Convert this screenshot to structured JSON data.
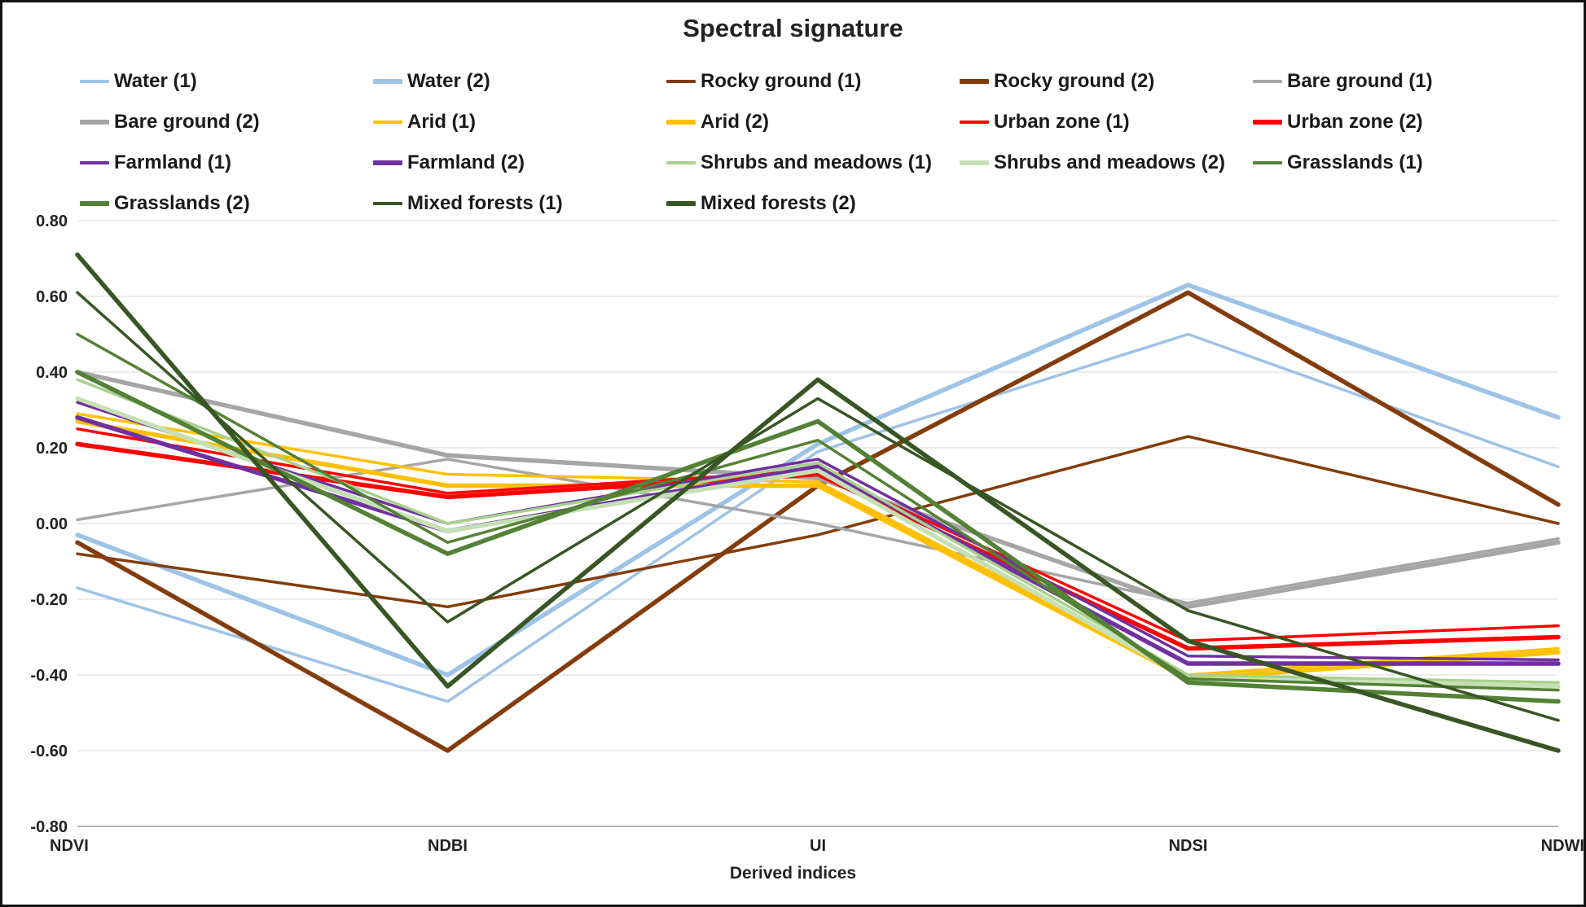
{
  "chart_data": {
    "type": "line",
    "title": "Spectral signature",
    "xlabel": "Derived indices",
    "ylabel": "",
    "categories": [
      "NDVI",
      "NDBI",
      "UI",
      "NDSI",
      "NDWI"
    ],
    "ylim": [
      -0.8,
      0.8
    ],
    "ystep": 0.2,
    "grid": "horizontal",
    "legend_position": "top",
    "gridline_color": "#d9d9d9",
    "axis_color": "#9a9a9a",
    "series": [
      {
        "name": "Water (1)",
        "color": "#9DC3E6",
        "width": 3.5,
        "values": [
          -0.17,
          -0.47,
          0.19,
          0.5,
          0.15
        ]
      },
      {
        "name": "Water (2)",
        "color": "#9DC3E6",
        "width": 5.5,
        "values": [
          -0.03,
          -0.4,
          0.21,
          0.63,
          0.28
        ]
      },
      {
        "name": "Rocky ground (1)",
        "color": "#843C0C",
        "width": 3.5,
        "values": [
          -0.08,
          -0.22,
          -0.03,
          0.23,
          0.0
        ]
      },
      {
        "name": "Rocky ground (2)",
        "color": "#843C0C",
        "width": 5.5,
        "values": [
          -0.05,
          -0.6,
          0.1,
          0.61,
          0.05
        ]
      },
      {
        "name": "Bare ground (1)",
        "color": "#A6A6A6",
        "width": 3.5,
        "values": [
          0.01,
          0.17,
          0.0,
          -0.21,
          -0.04
        ]
      },
      {
        "name": "Bare ground (2)",
        "color": "#A6A6A6",
        "width": 5.5,
        "values": [
          0.4,
          0.18,
          0.12,
          -0.22,
          -0.05
        ]
      },
      {
        "name": "Arid (1)",
        "color": "#FFC000",
        "width": 3.5,
        "values": [
          0.29,
          0.13,
          0.11,
          -0.4,
          -0.33
        ]
      },
      {
        "name": "Arid (2)",
        "color": "#FFC000",
        "width": 5.5,
        "values": [
          0.27,
          0.1,
          0.1,
          -0.41,
          -0.34
        ]
      },
      {
        "name": "Urban zone (1)",
        "color": "#FF0000",
        "width": 3.5,
        "values": [
          0.25,
          0.08,
          0.14,
          -0.31,
          -0.27
        ]
      },
      {
        "name": "Urban zone (2)",
        "color": "#FF0000",
        "width": 5.5,
        "values": [
          0.21,
          0.07,
          0.13,
          -0.33,
          -0.3
        ]
      },
      {
        "name": "Farmland (1)",
        "color": "#7030A0",
        "width": 3.5,
        "values": [
          0.32,
          0.0,
          0.17,
          -0.35,
          -0.36
        ]
      },
      {
        "name": "Farmland (2)",
        "color": "#7030A0",
        "width": 5.5,
        "values": [
          0.28,
          -0.02,
          0.15,
          -0.37,
          -0.37
        ]
      },
      {
        "name": "Shrubs and meadows (1)",
        "color": "#A9D18E",
        "width": 3.5,
        "values": [
          0.38,
          0.0,
          0.16,
          -0.4,
          -0.42
        ]
      },
      {
        "name": "Shrubs and meadows (2)",
        "color": "#C5E0B4",
        "width": 5.5,
        "values": [
          0.33,
          -0.02,
          0.14,
          -0.41,
          -0.43
        ]
      },
      {
        "name": "Grasslands (1)",
        "color": "#538135",
        "width": 3.5,
        "values": [
          0.5,
          -0.05,
          0.22,
          -0.41,
          -0.44
        ]
      },
      {
        "name": "Grasslands (2)",
        "color": "#538135",
        "width": 5.5,
        "values": [
          0.4,
          -0.08,
          0.27,
          -0.42,
          -0.47
        ]
      },
      {
        "name": "Mixed forests (1)",
        "color": "#375623",
        "width": 3.5,
        "values": [
          0.61,
          -0.26,
          0.33,
          -0.23,
          -0.52
        ]
      },
      {
        "name": "Mixed forests (2)",
        "color": "#375623",
        "width": 5.5,
        "values": [
          0.71,
          -0.43,
          0.38,
          -0.31,
          -0.6
        ]
      }
    ]
  }
}
